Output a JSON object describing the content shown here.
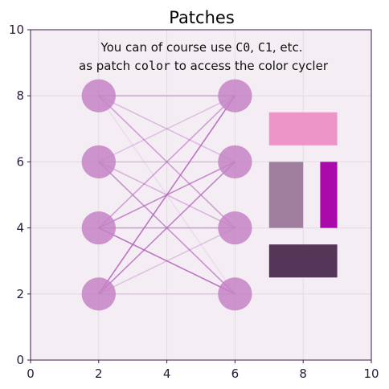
{
  "chart_data": {
    "type": "patches",
    "title": "Patches",
    "xlabel": "",
    "ylabel": "",
    "xlim": [
      0,
      10
    ],
    "ylim": [
      0,
      10
    ],
    "xticks": [
      0,
      2,
      4,
      6,
      8,
      10
    ],
    "yticks": [
      0,
      2,
      4,
      6,
      8,
      10
    ],
    "grid": true,
    "annotation": {
      "line1_prefix": "You can of course use ",
      "line1_code1": "C0",
      "line1_sep": ", ",
      "line1_code2": "C1",
      "line1_suffix": ", etc.",
      "line2_prefix": "as patch ",
      "line2_code": "color",
      "line2_suffix": " to access the color cycler"
    },
    "circles": [
      {
        "x": 2,
        "y": 8
      },
      {
        "x": 2,
        "y": 6
      },
      {
        "x": 2,
        "y": 4
      },
      {
        "x": 2,
        "y": 2
      },
      {
        "x": 6,
        "y": 8
      },
      {
        "x": 6,
        "y": 6
      },
      {
        "x": 6,
        "y": 4
      },
      {
        "x": 6,
        "y": 2
      }
    ],
    "circle_radius": 0.5,
    "circle_color": "#c583c5",
    "connections": [
      {
        "from": [
          2,
          8
        ],
        "to": [
          6,
          8
        ],
        "alpha": 0.45
      },
      {
        "from": [
          2,
          8
        ],
        "to": [
          6,
          6
        ],
        "alpha": 0.35
      },
      {
        "from": [
          2,
          8
        ],
        "to": [
          6,
          4
        ],
        "alpha": 0.55
      },
      {
        "from": [
          2,
          8
        ],
        "to": [
          6,
          2
        ],
        "alpha": 0.12
      },
      {
        "from": [
          2,
          6
        ],
        "to": [
          6,
          8
        ],
        "alpha": 0.3
      },
      {
        "from": [
          2,
          6
        ],
        "to": [
          6,
          6
        ],
        "alpha": 0.25
      },
      {
        "from": [
          2,
          6
        ],
        "to": [
          6,
          4
        ],
        "alpha": 0.4
      },
      {
        "from": [
          2,
          6
        ],
        "to": [
          6,
          2
        ],
        "alpha": 0.65
      },
      {
        "from": [
          2,
          4
        ],
        "to": [
          6,
          8
        ],
        "alpha": 0.55
      },
      {
        "from": [
          2,
          4
        ],
        "to": [
          6,
          6
        ],
        "alpha": 0.7
      },
      {
        "from": [
          2,
          4
        ],
        "to": [
          6,
          4
        ],
        "alpha": 0.5
      },
      {
        "from": [
          2,
          4
        ],
        "to": [
          6,
          2
        ],
        "alpha": 0.85
      },
      {
        "from": [
          2,
          2
        ],
        "to": [
          6,
          8
        ],
        "alpha": 0.85
      },
      {
        "from": [
          2,
          2
        ],
        "to": [
          6,
          6
        ],
        "alpha": 0.75
      },
      {
        "from": [
          2,
          2
        ],
        "to": [
          6,
          4
        ],
        "alpha": 0.3
      },
      {
        "from": [
          2,
          2
        ],
        "to": [
          6,
          2
        ],
        "alpha": 0.2
      }
    ],
    "line_color": "#b15fb9",
    "rectangles": [
      {
        "x": 7,
        "y": 6.5,
        "width": 2,
        "height": 1,
        "color": "#ed95c8"
      },
      {
        "x": 7,
        "y": 4,
        "width": 1,
        "height": 2,
        "color": "#a07f9e"
      },
      {
        "x": 8.5,
        "y": 4,
        "width": 0.5,
        "height": 2,
        "color": "#ab0aab"
      },
      {
        "x": 7,
        "y": 2.5,
        "width": 2,
        "height": 1,
        "color": "#553658"
      }
    ],
    "colors": {
      "axes_background": "#f4edf4",
      "axes_border": "#3b1d4a",
      "grid": "#e2dbe2"
    }
  }
}
